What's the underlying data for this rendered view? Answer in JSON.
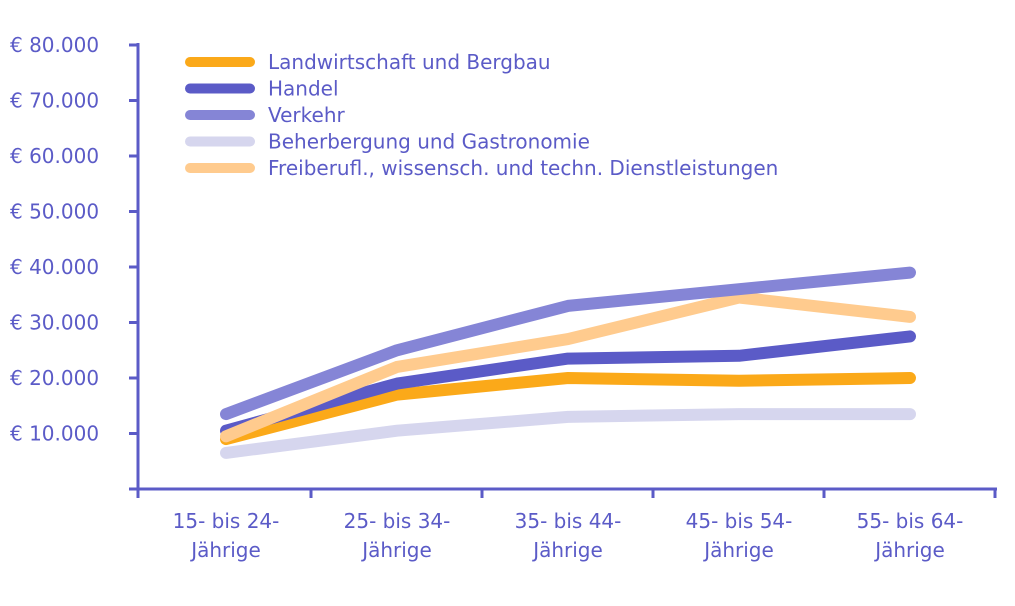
{
  "chart_data": {
    "type": "line",
    "title": "",
    "xlabel": "",
    "ylabel": "",
    "categories": [
      [
        "15- bis 24-",
        "Jährige"
      ],
      [
        "25- bis 34-",
        "Jährige"
      ],
      [
        "35- bis 44-",
        "Jährige"
      ],
      [
        "45- bis 54-",
        "Jährige"
      ],
      [
        "55- bis 64-",
        "Jährige"
      ]
    ],
    "ylim": [
      0,
      80000
    ],
    "y_ticks": [
      10000,
      20000,
      30000,
      40000,
      50000,
      60000,
      70000,
      80000
    ],
    "y_tick_labels": [
      "€ 10.000",
      "€ 20.000",
      "€ 30.000",
      "€ 40.000",
      "€ 50.000",
      "€ 60.000",
      "€ 70.000",
      "€ 80.000"
    ],
    "grid": false,
    "legend_position": "top-left",
    "axis_color": "#5b5bc7",
    "series": [
      {
        "name": "Landwirtschaft und Bergbau",
        "color": "#fba919",
        "values": [
          9000,
          17000,
          20000,
          19500,
          20000
        ]
      },
      {
        "name": "Handel",
        "color": "#5b5bc7",
        "values": [
          10500,
          19000,
          23500,
          24000,
          27500
        ]
      },
      {
        "name": "Verkehr",
        "color": "#8585d6",
        "values": [
          13500,
          25000,
          33000,
          36000,
          39000
        ]
      },
      {
        "name": "Beherbergung und Gastronomie",
        "color": "#d6d6ee",
        "values": [
          6500,
          10500,
          13000,
          13500,
          13500
        ]
      },
      {
        "name": "Freiberufl., wissensch. und techn. Dienstleistungen",
        "color": "#ffcb8e",
        "values": [
          9500,
          22000,
          27000,
          34500,
          31000
        ]
      }
    ]
  }
}
